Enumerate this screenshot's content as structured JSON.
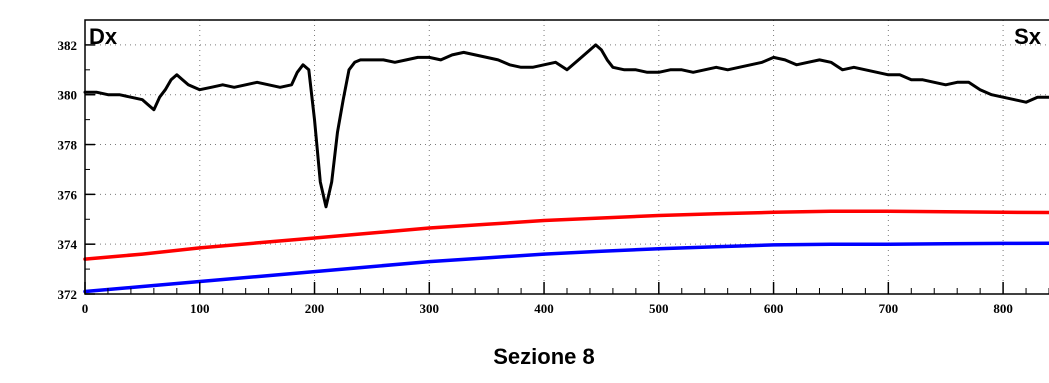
{
  "chart_data": {
    "type": "line",
    "xlabel": "Sezione 8",
    "ylabel": "",
    "xlim": [
      0,
      840
    ],
    "ylim": [
      372,
      383
    ],
    "x_ticks": [
      0,
      100,
      200,
      300,
      400,
      500,
      600,
      700,
      800
    ],
    "y_ticks": [
      372,
      374,
      376,
      378,
      380,
      382
    ],
    "grid": true,
    "annotations": [
      {
        "text": "Dx",
        "position": "top-left"
      },
      {
        "text": "Sx",
        "position": "top-right"
      }
    ],
    "series": [
      {
        "color": "#000000",
        "x": [
          0,
          10,
          20,
          30,
          40,
          50,
          55,
          60,
          65,
          70,
          75,
          80,
          85,
          90,
          95,
          100,
          110,
          120,
          130,
          140,
          150,
          160,
          170,
          180,
          185,
          190,
          195,
          200,
          205,
          210,
          215,
          220,
          225,
          230,
          235,
          240,
          250,
          260,
          270,
          280,
          290,
          300,
          310,
          320,
          330,
          340,
          350,
          360,
          370,
          380,
          390,
          400,
          410,
          420,
          430,
          440,
          445,
          450,
          455,
          460,
          470,
          480,
          490,
          500,
          510,
          520,
          530,
          540,
          550,
          560,
          570,
          580,
          590,
          600,
          610,
          620,
          630,
          640,
          650,
          660,
          670,
          680,
          690,
          700,
          710,
          720,
          730,
          740,
          750,
          760,
          770,
          780,
          790,
          800,
          810,
          820,
          830,
          840
        ],
        "y": [
          380.1,
          380.1,
          380.0,
          380.0,
          379.9,
          379.8,
          379.6,
          379.4,
          379.9,
          380.2,
          380.6,
          380.8,
          380.6,
          380.4,
          380.3,
          380.2,
          380.3,
          380.4,
          380.3,
          380.4,
          380.5,
          380.4,
          380.3,
          380.4,
          380.9,
          381.2,
          381.0,
          379.0,
          376.5,
          375.5,
          376.5,
          378.5,
          379.8,
          381.0,
          381.3,
          381.4,
          381.4,
          381.4,
          381.3,
          381.4,
          381.5,
          381.5,
          381.4,
          381.6,
          381.7,
          381.6,
          381.5,
          381.4,
          381.2,
          381.1,
          381.1,
          381.2,
          381.3,
          381.0,
          381.4,
          381.8,
          382.0,
          381.8,
          381.4,
          381.1,
          381.0,
          381.0,
          380.9,
          380.9,
          381.0,
          381.0,
          380.9,
          381.0,
          381.1,
          381.0,
          381.1,
          381.2,
          381.3,
          381.5,
          381.4,
          381.2,
          381.3,
          381.4,
          381.3,
          381.0,
          381.1,
          381.0,
          380.9,
          380.8,
          380.8,
          380.6,
          380.6,
          380.5,
          380.4,
          380.5,
          380.5,
          380.2,
          380.0,
          379.9,
          379.8,
          379.7,
          379.9,
          379.9
        ]
      },
      {
        "color": "#ff0000",
        "x": [
          0,
          50,
          100,
          150,
          200,
          250,
          300,
          350,
          400,
          450,
          500,
          550,
          600,
          650,
          700,
          750,
          800,
          840
        ],
        "y": [
          373.4,
          373.6,
          373.85,
          374.05,
          374.25,
          374.45,
          374.65,
          374.8,
          374.95,
          375.05,
          375.15,
          375.22,
          375.28,
          375.32,
          375.32,
          375.3,
          375.28,
          375.27
        ]
      },
      {
        "color": "#0000ff",
        "x": [
          0,
          50,
          100,
          150,
          200,
          250,
          300,
          350,
          400,
          450,
          500,
          550,
          600,
          650,
          700,
          750,
          800,
          840
        ],
        "y": [
          372.1,
          372.3,
          372.5,
          372.7,
          372.9,
          373.1,
          373.3,
          373.45,
          373.6,
          373.72,
          373.82,
          373.9,
          373.97,
          374.0,
          374.0,
          374.02,
          374.03,
          374.04
        ]
      }
    ]
  }
}
